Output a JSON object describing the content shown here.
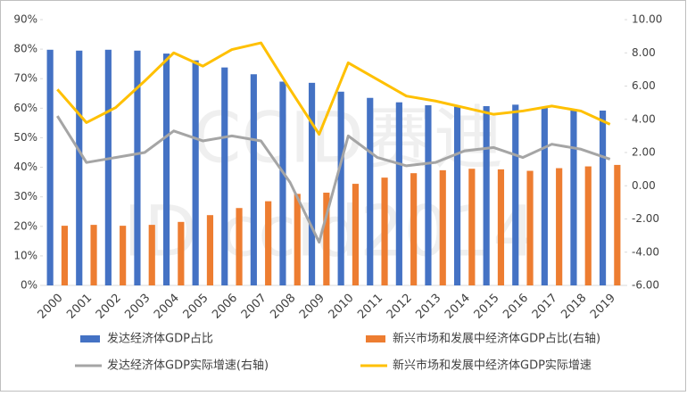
{
  "chart_data": {
    "type": "combo",
    "watermark": [
      "CCID赛迪",
      "ID ccid2014"
    ],
    "categories": [
      "2000",
      "2001",
      "2002",
      "2003",
      "2004",
      "2005",
      "2006",
      "2007",
      "2008",
      "2009",
      "2010",
      "2011",
      "2012",
      "2013",
      "2014",
      "2015",
      "2016",
      "2017",
      "2018",
      "2019"
    ],
    "series": [
      {
        "name": "发达经济体GDP占比",
        "type": "bar",
        "color": "#4472c4",
        "values": [
          79.8,
          79.5,
          79.8,
          79.5,
          78.5,
          76.2,
          73.8,
          71.5,
          69,
          68.6,
          65.6,
          63.5,
          62,
          61,
          60.5,
          60.7,
          61.2,
          60.3,
          59.7,
          59.2
        ]
      },
      {
        "name": "新兴市场和发展中经济体GDP占比(右轴)",
        "type": "bar",
        "color": "#ed7d31",
        "values": [
          20.2,
          20.5,
          20.2,
          20.5,
          21.5,
          23.8,
          26.2,
          28.5,
          31,
          31.4,
          34.4,
          36.5,
          38,
          39,
          39.5,
          39.3,
          38.8,
          39.7,
          40.3,
          40.8
        ]
      },
      {
        "name": "发达经济体GDP实际增速(右轴)",
        "type": "line",
        "axis": "y2",
        "color": "#a5a5a5",
        "values": [
          4.2,
          1.4,
          1.7,
          2.0,
          3.3,
          2.7,
          3.0,
          2.7,
          0.2,
          -3.4,
          3.0,
          1.7,
          1.2,
          1.4,
          2.1,
          2.3,
          1.7,
          2.5,
          2.2,
          1.6
        ]
      },
      {
        "name": "新兴市场和发展中经济体GDP实际增速",
        "type": "line",
        "axis": "y2",
        "color": "#ffc000",
        "values": [
          5.8,
          3.8,
          4.7,
          6.3,
          8.0,
          7.2,
          8.2,
          8.6,
          5.8,
          3.1,
          7.4,
          6.4,
          5.4,
          5.1,
          4.7,
          4.3,
          4.5,
          4.8,
          4.5,
          3.7
        ]
      }
    ],
    "ylim": [
      0,
      90
    ],
    "yticks": [
      {
        "value": 0,
        "label": "0%"
      },
      {
        "value": 10,
        "label": "10%"
      },
      {
        "value": 20,
        "label": "20%"
      },
      {
        "value": 30,
        "label": "30%"
      },
      {
        "value": 40,
        "label": "40%"
      },
      {
        "value": 50,
        "label": "50%"
      },
      {
        "value": 60,
        "label": "60%"
      },
      {
        "value": 70,
        "label": "70%"
      },
      {
        "value": 80,
        "label": "80%"
      },
      {
        "value": 90,
        "label": "90%"
      }
    ],
    "y2lim": [
      -6,
      10
    ],
    "y2ticks": [
      {
        "value": -6,
        "label": "-6.00"
      },
      {
        "value": -4,
        "label": "-4.00"
      },
      {
        "value": -2,
        "label": "-2.00"
      },
      {
        "value": 0,
        "label": "0.00"
      },
      {
        "value": 2,
        "label": "2.00"
      },
      {
        "value": 4,
        "label": "4.00"
      },
      {
        "value": 6,
        "label": "6.00"
      },
      {
        "value": 8,
        "label": "8.00"
      },
      {
        "value": 10,
        "label": "10.00"
      }
    ],
    "grid": false
  }
}
